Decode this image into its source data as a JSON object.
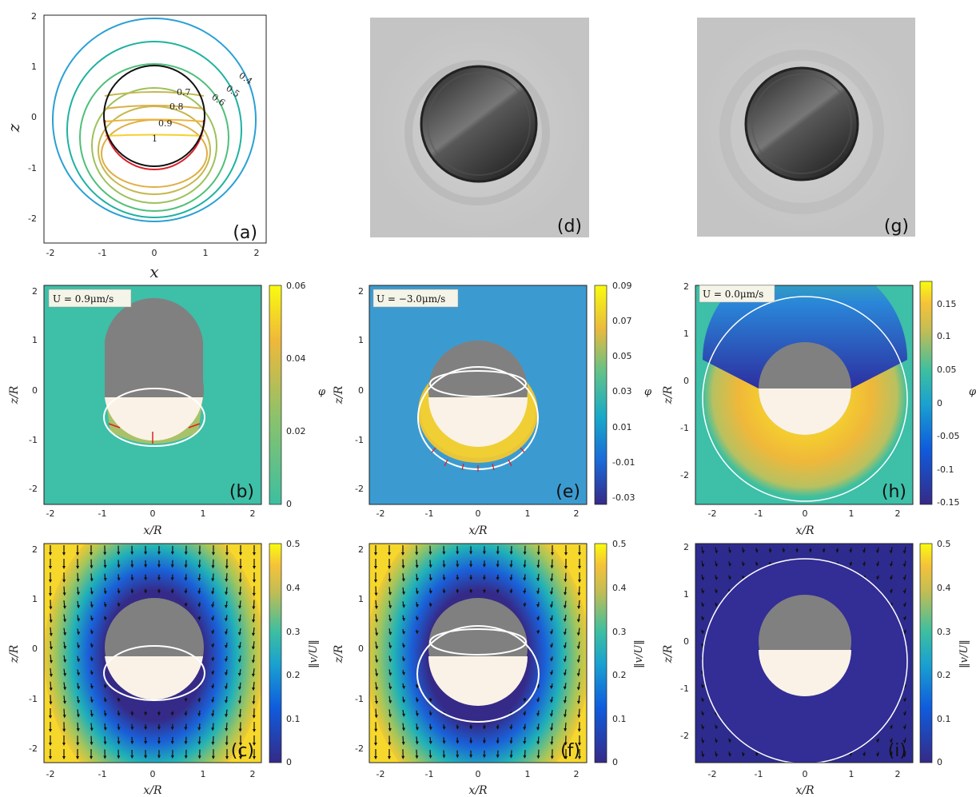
{
  "panels": {
    "a": "(a)",
    "b": "(b)",
    "c": "(c)",
    "d": "(d)",
    "e": "(e)",
    "f": "(f)",
    "g": "(g)",
    "h": "(h)",
    "i": "(i)"
  },
  "axes": {
    "x_a": "x",
    "z_a": "z",
    "xR": "x/R",
    "zR": "z/R",
    "phi": "φ",
    "vnorm": "‖v/U‖"
  },
  "velocity_labels": {
    "b": "U = 0.9μm/s",
    "e": "U = −3.0μm/s",
    "h": "U = 0.0μm/s"
  },
  "colorbars": {
    "b": [
      "0.06",
      "0.04",
      "0.02",
      "0"
    ],
    "e": [
      "0.09",
      "0.07",
      "0.05",
      "0.03",
      "0.01",
      "-0.01",
      "-0.03"
    ],
    "h": [
      "0.15",
      "0.1",
      "0.05",
      "0",
      "-0.05",
      "-0.1",
      "-0.15"
    ],
    "c": [
      "0.5",
      "0.4",
      "0.3",
      "0.2",
      "0.1",
      "0"
    ],
    "f": [
      "0.5",
      "0.4",
      "0.3",
      "0.2",
      "0.1",
      "0"
    ],
    "i": [
      "0.5",
      "0.4",
      "0.3",
      "0.2",
      "0.1",
      "0"
    ]
  },
  "chart_data": [
    {
      "type": "contour",
      "panel": "a",
      "xlabel": "x",
      "ylabel": "z",
      "xlim": [
        -2.2,
        2.2
      ],
      "ylim": [
        -2.5,
        2
      ],
      "xticks": [
        "-2",
        "-1",
        "0",
        "1",
        "2"
      ],
      "yticks": [
        "2",
        "1",
        "0",
        "-1",
        "-2"
      ],
      "contour_labels": [
        "0.4",
        "0.5",
        "0.6",
        "0.7",
        "0.8",
        "0.9",
        "1"
      ]
    },
    {
      "type": "heatmap",
      "panel": "b",
      "colorbar_label": "φ",
      "ticks": [
        "-2",
        "-1",
        "0",
        "1",
        "2"
      ],
      "yticks": [
        "2",
        "1",
        "0",
        "-1",
        "-2"
      ]
    },
    {
      "type": "heatmap",
      "panel": "e",
      "colorbar_label": "φ",
      "ticks": [
        "-2",
        "-1",
        "0",
        "1",
        "2"
      ],
      "yticks": [
        "2",
        "1",
        "0",
        "-1",
        "-2"
      ]
    },
    {
      "type": "heatmap",
      "panel": "h",
      "colorbar_label": "φ",
      "ticks": [
        "-2",
        "-1",
        "0",
        "1",
        "2"
      ],
      "yticks": [
        "2",
        "1",
        "0",
        "-1",
        "-2"
      ]
    },
    {
      "type": "heatmap",
      "panel": "c",
      "colorbar_label": "‖v/U‖",
      "ticks": [
        "-2",
        "-1",
        "0",
        "1",
        "2"
      ],
      "yticks": [
        "2",
        "1",
        "0",
        "-1",
        "-2"
      ]
    },
    {
      "type": "heatmap",
      "panel": "f",
      "colorbar_label": "‖v/U‖",
      "ticks": [
        "-2",
        "-1",
        "0",
        "1",
        "2"
      ],
      "yticks": [
        "2",
        "1",
        "0",
        "-1",
        "-2"
      ]
    },
    {
      "type": "heatmap",
      "panel": "i",
      "colorbar_label": "‖v/U‖",
      "ticks": [
        "-2",
        "-1",
        "0",
        "1",
        "2"
      ],
      "yticks": [
        "2",
        "1",
        "0",
        "-1",
        "-2"
      ]
    }
  ]
}
